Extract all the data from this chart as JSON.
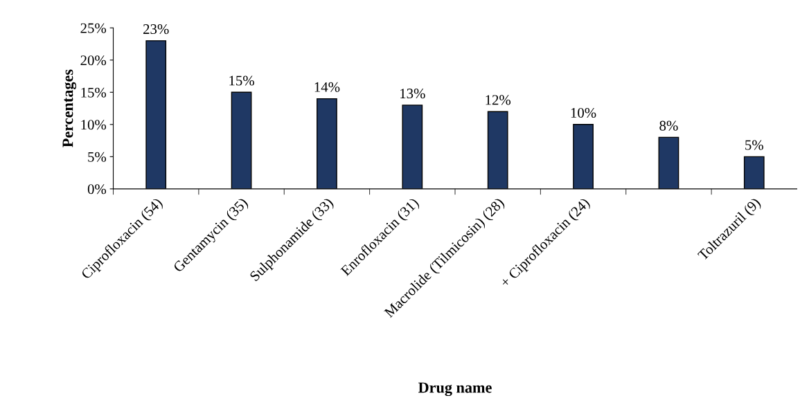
{
  "chart_data": {
    "type": "bar",
    "xlabel": "Drug name",
    "ylabel": "Percentages",
    "categories": [
      "Ciprofloxacin (54)",
      "Gentamycin (35)",
      "Sulphonamide (33)",
      "Enrofloxacin (31)",
      "Macrolide (Tilmicosin) (28)",
      "+ Ciprofloxacin (24)",
      null,
      "Toltrazuril (9)"
    ],
    "values": [
      23,
      15,
      14,
      13,
      12,
      10,
      8,
      5
    ],
    "value_labels": [
      "23%",
      "15%",
      "14%",
      "13%",
      "12%",
      "10%",
      "8%",
      "5%"
    ],
    "color": "#1f3864",
    "ylim": [
      0,
      25
    ],
    "yticks": [
      {
        "value": 0,
        "label": "0%"
      },
      {
        "value": 5,
        "label": "5%"
      },
      {
        "value": 10,
        "label": "10%"
      },
      {
        "value": 15,
        "label": "15%"
      },
      {
        "value": 20,
        "label": "20%"
      },
      {
        "value": 25,
        "label": "25%"
      }
    ],
    "grid": false,
    "legend": false
  }
}
